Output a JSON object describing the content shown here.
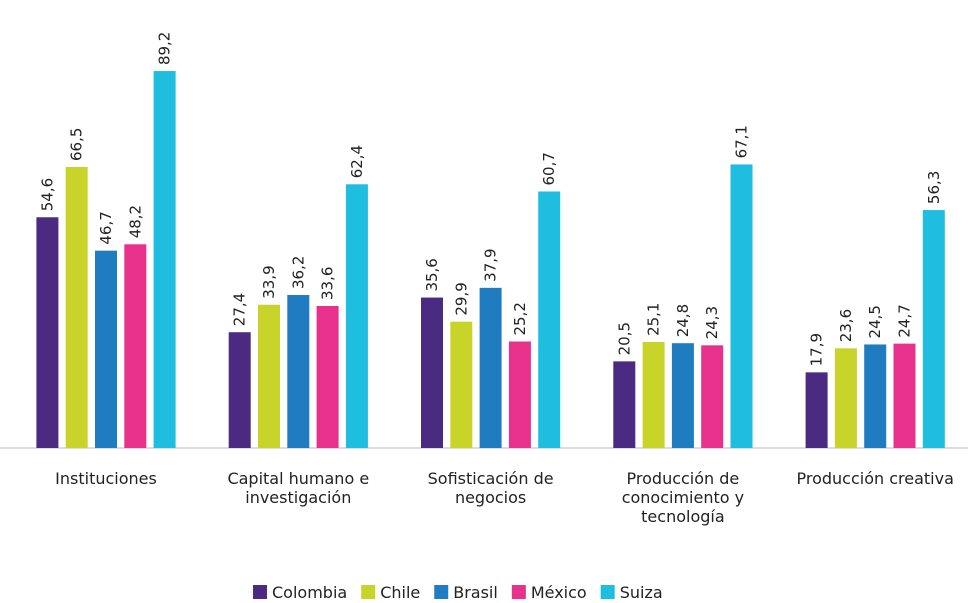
{
  "chart_data": {
    "type": "bar",
    "categories": [
      "Instituciones",
      "Capital humano e investigación",
      "Sofisticación de negocios",
      "Producción de conocimiento y tecnología",
      "Producción creativa"
    ],
    "series": [
      {
        "name": "Colombia",
        "color": "#4b2a82",
        "values": [
          54.6,
          27.4,
          35.6,
          20.5,
          17.9
        ],
        "value_labels": [
          "54,6",
          "27,4",
          "35,6",
          "20,5",
          "17,9"
        ]
      },
      {
        "name": "Chile",
        "color": "#c8d42a",
        "values": [
          66.5,
          33.9,
          29.9,
          25.1,
          23.6
        ],
        "value_labels": [
          "66,5",
          "33,9",
          "29,9",
          "25,1",
          "23,6"
        ]
      },
      {
        "name": "Brasil",
        "color": "#1f7cc1",
        "values": [
          46.7,
          36.2,
          37.9,
          24.8,
          24.5
        ],
        "value_labels": [
          "46,7",
          "36,2",
          "37,9",
          "24,8",
          "24,5"
        ]
      },
      {
        "name": "México",
        "color": "#e8318a",
        "values": [
          48.2,
          33.6,
          25.2,
          24.3,
          24.7
        ],
        "value_labels": [
          "48,2",
          "33,6",
          "25,2",
          "24,3",
          "24,7"
        ]
      },
      {
        "name": "Suiza",
        "color": "#1fbde0",
        "values": [
          89.2,
          62.4,
          60.7,
          67.1,
          56.3
        ],
        "value_labels": [
          "89,2",
          "62,4",
          "60,7",
          "67,1",
          "56,3"
        ]
      }
    ],
    "ylim": [
      0,
      100
    ],
    "legend": "bottom"
  }
}
